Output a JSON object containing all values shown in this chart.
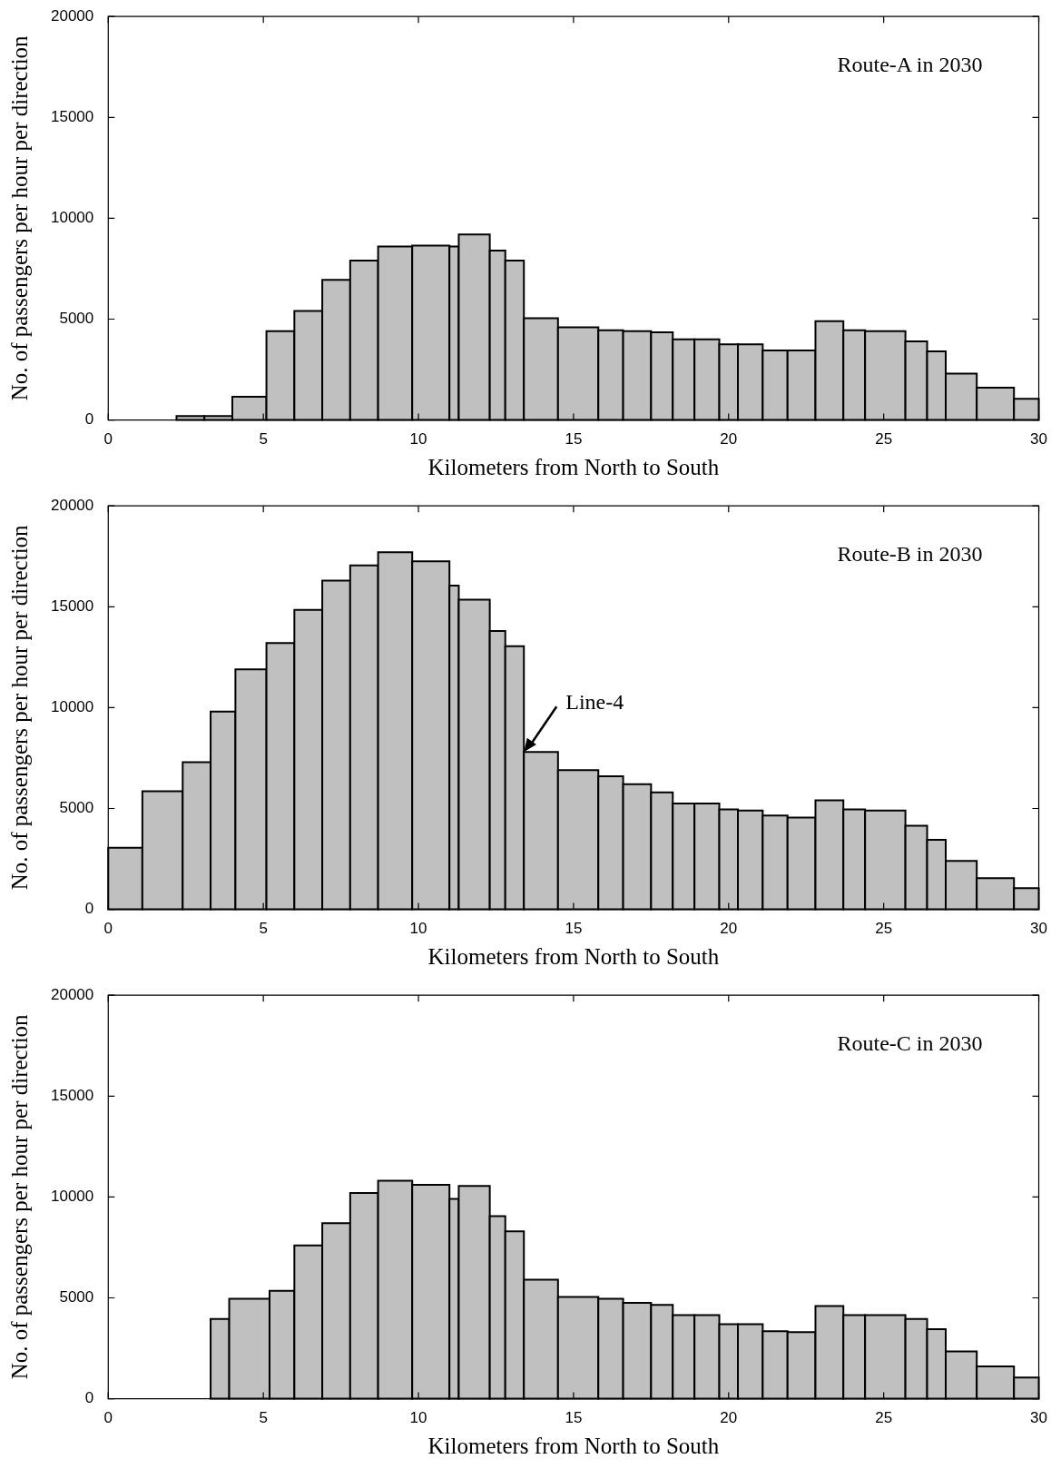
{
  "chart_data": [
    {
      "type": "histogram",
      "title": "Route-A in 2030",
      "xlabel": "Kilometers from North to South",
      "ylabel": "No. of passengers per hour per direction",
      "color": "#c0c0c0",
      "bins": [
        2.2,
        3.1,
        4.0,
        5.1,
        6.0,
        6.9,
        7.8,
        8.7,
        9.8,
        11.0,
        11.3,
        12.3,
        12.8,
        13.4,
        14.5,
        15.8,
        16.6,
        17.5,
        18.2,
        18.9,
        19.7,
        20.3,
        21.1,
        21.9,
        22.8,
        23.7,
        24.4,
        25.7,
        26.4,
        27.0,
        28.0,
        29.2,
        30
      ],
      "values": [
        200,
        200,
        1150,
        4400,
        5400,
        6950,
        7900,
        8600,
        8650,
        8600,
        9200,
        8400,
        7900,
        5050,
        4600,
        4450,
        4400,
        4350,
        4000,
        4000,
        3750,
        3750,
        3450,
        3450,
        4900,
        4450,
        4400,
        3900,
        3400,
        2300,
        1600,
        1050
      ],
      "xlim": [
        0,
        30
      ],
      "xticks": [
        0,
        5,
        10,
        15,
        20,
        25,
        30
      ],
      "ylim": [
        0,
        20000
      ],
      "yticks": [
        0,
        5000,
        10000,
        15000,
        20000
      ]
    },
    {
      "type": "histogram",
      "title": "Route-B in 2030",
      "xlabel": "Kilometers from North to South",
      "ylabel": "No. of passengers per hour per direction",
      "color": "#c0c0c0",
      "bins": [
        0,
        1.1,
        2.4,
        3.3,
        4.1,
        5.1,
        6.0,
        6.9,
        7.8,
        8.7,
        9.8,
        11.0,
        11.3,
        12.3,
        12.8,
        13.4,
        14.5,
        15.8,
        16.6,
        17.5,
        18.2,
        18.9,
        19.7,
        20.3,
        21.1,
        21.9,
        22.8,
        23.7,
        24.4,
        25.7,
        26.4,
        27.0,
        28.0,
        29.2,
        30
      ],
      "values": [
        3050,
        5850,
        7300,
        9800,
        11900,
        13200,
        14850,
        16300,
        17050,
        17700,
        17250,
        16050,
        15350,
        13800,
        13050,
        7800,
        6900,
        6600,
        6200,
        5800,
        5250,
        5250,
        4950,
        4900,
        4650,
        4550,
        5400,
        4950,
        4900,
        4150,
        3450,
        2400,
        1550,
        1050
      ],
      "xlim": [
        0,
        30
      ],
      "xticks": [
        0,
        5,
        10,
        15,
        20,
        25,
        30
      ],
      "ylim": [
        0,
        20000
      ],
      "yticks": [
        0,
        5000,
        10000,
        15000,
        20000
      ],
      "annotations": [
        {
          "text": "Line-4",
          "x": 13.4,
          "y": 7800
        }
      ]
    },
    {
      "type": "histogram",
      "title": "Route-C in 2030",
      "xlabel": "Kilometers from North to South",
      "ylabel": "No. of passengers per hour per direction",
      "color": "#c0c0c0",
      "bins": [
        3.3,
        3.9,
        5.2,
        6.0,
        6.9,
        7.8,
        8.7,
        9.8,
        11.0,
        11.3,
        12.3,
        12.8,
        13.4,
        14.5,
        15.8,
        16.6,
        17.5,
        18.2,
        18.9,
        19.7,
        20.3,
        21.1,
        21.9,
        22.8,
        23.7,
        24.4,
        25.7,
        26.4,
        27.0,
        28.0,
        29.2,
        30
      ],
      "values": [
        3950,
        4950,
        5350,
        7600,
        8700,
        10200,
        10800,
        10600,
        9900,
        10550,
        9050,
        8300,
        5900,
        5050,
        4950,
        4750,
        4650,
        4150,
        4150,
        3700,
        3700,
        3350,
        3300,
        4600,
        4150,
        4150,
        3950,
        3450,
        2350,
        1600,
        1050
      ],
      "xlim": [
        0,
        30
      ],
      "xticks": [
        0,
        5,
        10,
        15,
        20,
        25,
        30
      ],
      "ylim": [
        0,
        20000
      ],
      "yticks": [
        0,
        5000,
        10000,
        15000,
        20000
      ]
    }
  ]
}
